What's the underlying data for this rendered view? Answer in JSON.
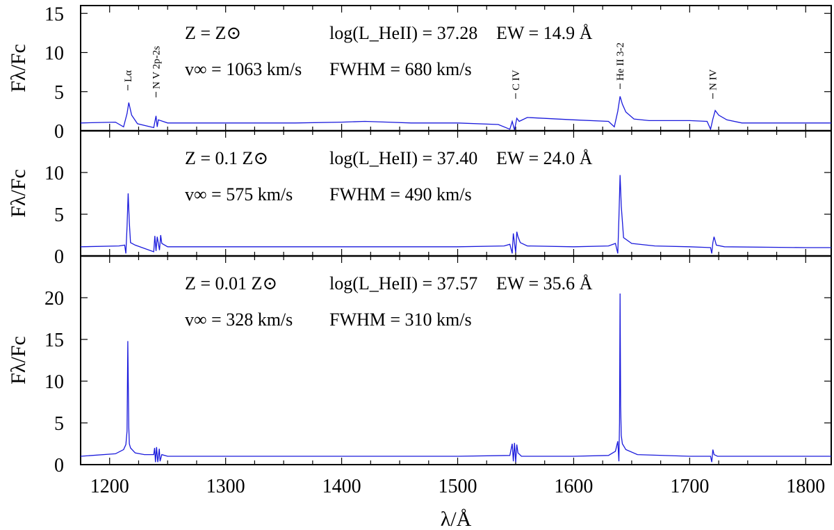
{
  "chart_data": {
    "type": "line",
    "xlabel": "λ/Å",
    "xlim": [
      1175,
      1822
    ],
    "xticks": [
      1200,
      1300,
      1400,
      1500,
      1600,
      1700,
      1800
    ],
    "line_markers": [
      {
        "label": "Lα",
        "x": 1215.7
      },
      {
        "label": "N V 2p-2s",
        "x": 1240
      },
      {
        "label": "C IV",
        "x": 1550
      },
      {
        "label": "He II 3-2",
        "x": 1640
      },
      {
        "label": "N IV",
        "x": 1720
      }
    ],
    "panels": [
      {
        "ylabel": "Fλ/Fc",
        "ylim": [
          0,
          16
        ],
        "yticks": [
          0,
          5,
          10,
          15
        ],
        "annotations": {
          "z": "Z = Z⊙",
          "vinf": "v∞ = 1063 km/s",
          "logl": "log(L_HeII) = 37.28",
          "fwhm": "FWHM = 680 km/s",
          "ew": "EW = 14.9 Å"
        },
        "series": [
          {
            "x": [
              1175,
              1205,
              1212,
              1215,
              1216.5,
              1219,
              1224,
              1238,
              1240,
              1241,
              1242,
              1250,
              1300,
              1360,
              1400,
              1420,
              1440,
              1460,
              1500,
              1535,
              1545,
              1547,
              1549,
              1551,
              1553,
              1560,
              1600,
              1630,
              1635,
              1638,
              1640,
              1642,
              1645,
              1652,
              1665,
              1700,
              1715,
              1718,
              1720,
              1722,
              1725,
              1732,
              1745,
              1800,
              1822
            ],
            "y": [
              1.0,
              1.1,
              0.5,
              2.2,
              3.6,
              2.0,
              0.9,
              0.4,
              1.9,
              0.5,
              1.4,
              1.0,
              1.0,
              1.0,
              1.1,
              1.2,
              1.1,
              1.0,
              1.0,
              0.8,
              0.2,
              1.2,
              0.1,
              1.6,
              1.2,
              1.7,
              1.4,
              1.2,
              0.5,
              2.5,
              4.4,
              3.4,
              2.4,
              1.5,
              1.3,
              1.3,
              1.2,
              0.2,
              1.5,
              2.6,
              2.0,
              1.4,
              1.0,
              1.0,
              1.0
            ]
          }
        ]
      },
      {
        "ylabel": "Fλ/Fc",
        "ylim": [
          0,
          15
        ],
        "yticks": [
          0,
          5,
          10
        ],
        "annotations": {
          "z": "Z = 0.1 Z⊙",
          "vinf": "v∞ = 575 km/s",
          "logl": "log(L_HeII) = 37.40",
          "fwhm": "FWHM = 490 km/s",
          "ew": "EW = 24.0 Å"
        },
        "series": [
          {
            "x": [
              1175,
              1208,
              1213,
              1214,
              1215,
              1216,
              1217,
              1218,
              1222,
              1238,
              1239,
              1240,
              1241,
              1243,
              1244,
              1245,
              1250,
              1300,
              1400,
              1500,
              1540,
              1545,
              1547,
              1548,
              1550,
              1551,
              1552,
              1554,
              1560,
              1600,
              1630,
              1636,
              1638,
              1639,
              1640,
              1641,
              1643,
              1650,
              1670,
              1700,
              1718,
              1719,
              1720,
              1721,
              1723,
              1730,
              1800,
              1822
            ],
            "y": [
              1.1,
              1.2,
              1.3,
              0.3,
              3.5,
              7.5,
              4.0,
              1.6,
              1.3,
              0.5,
              2.4,
              0.6,
              2.3,
              0.7,
              2.5,
              1.5,
              1.1,
              1.1,
              1.1,
              1.1,
              1.2,
              1.4,
              0.3,
              2.7,
              0.4,
              2.9,
              2.3,
              1.6,
              1.2,
              1.1,
              1.2,
              1.5,
              0.3,
              4.5,
              9.7,
              6.0,
              2.2,
              1.5,
              1.2,
              1.1,
              1.0,
              0.3,
              1.6,
              2.3,
              1.3,
              1.1,
              1.0,
              1.0
            ]
          }
        ]
      },
      {
        "ylabel": "Fλ/Fc",
        "ylim": [
          0,
          25
        ],
        "yticks": [
          0,
          5,
          10,
          15,
          20
        ],
        "annotations": {
          "z": "Z = 0.01 Z⊙",
          "vinf": "v∞ = 328 km/s",
          "logl": "log(L_HeII) = 37.57",
          "fwhm": "FWHM = 310 km/s",
          "ew": "EW = 35.6 Å"
        },
        "series": [
          {
            "x": [
              1175,
              1205,
              1212,
              1214,
              1215,
              1215.7,
              1216.5,
              1217,
              1218,
              1222,
              1230,
              1238,
              1238.8,
              1239.5,
              1240.5,
              1241.5,
              1242.8,
              1243.5,
              1245,
              1250,
              1300,
              1400,
              1500,
              1545,
              1547,
              1548,
              1549,
              1550,
              1551,
              1552,
              1555,
              1600,
              1630,
              1636,
              1638,
              1639,
              1639.5,
              1640,
              1640.5,
              1641,
              1642,
              1645,
              1655,
              1700,
              1718,
              1719,
              1720,
              1721,
              1724,
              1800,
              1822
            ],
            "y": [
              1.0,
              1.3,
              1.8,
              2.4,
              4.0,
              14.8,
              4.5,
              2.5,
              2.0,
              1.4,
              1.2,
              1.2,
              2.0,
              0.3,
              2.1,
              0.3,
              1.9,
              0.4,
              1.2,
              1.0,
              1.0,
              1.0,
              1.0,
              1.1,
              2.5,
              0.4,
              2.6,
              0.3,
              2.4,
              1.4,
              1.0,
              1.0,
              1.1,
              1.6,
              2.8,
              0.4,
              5.0,
              20.5,
              7.0,
              3.5,
              2.5,
              1.8,
              1.2,
              1.0,
              1.0,
              0.3,
              1.8,
              1.2,
              1.0,
              1.0,
              1.0
            ]
          }
        ]
      }
    ]
  }
}
